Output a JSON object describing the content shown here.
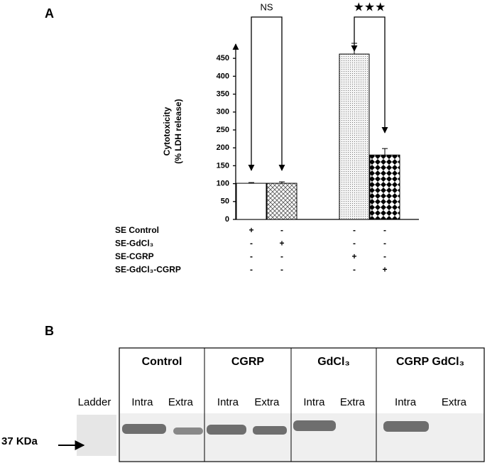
{
  "chart_data": {
    "type": "bar",
    "panel_label": "A",
    "ylabel": [
      "Cytotoxicity",
      "(% LDH release)"
    ],
    "values": [
      101,
      101,
      462,
      180
    ],
    "errors": [
      2,
      4,
      30,
      18
    ],
    "ylim": [
      0,
      490
    ],
    "yticks": [
      0,
      50,
      100,
      150,
      200,
      250,
      300,
      350,
      400,
      450
    ],
    "annotations": [
      "NS",
      "★★★"
    ],
    "conditions": [
      {
        "name": "SE Control",
        "signs": [
          "+",
          "-",
          "-",
          "-"
        ]
      },
      {
        "name": "SE-GdCl₃",
        "signs": [
          "-",
          "+",
          "-",
          "-"
        ]
      },
      {
        "name": "SE-CGRP",
        "signs": [
          "-",
          "-",
          "+",
          "-"
        ]
      },
      {
        "name": "SE-GdCl₃-CGRP",
        "signs": [
          "-",
          "-",
          "-",
          "+"
        ]
      }
    ]
  },
  "blot": {
    "panel_label": "B",
    "ladder": "Ladder",
    "marker": "37 KDa",
    "groups": [
      {
        "name": "Control",
        "lanes": [
          "Intra",
          "Extra"
        ]
      },
      {
        "name": "CGRP",
        "lanes": [
          "Intra",
          "Extra"
        ]
      },
      {
        "name": "GdCl₃",
        "lanes": [
          "Intra",
          "Extra"
        ]
      },
      {
        "name": "CGRP GdCl₃",
        "lanes": [
          "Intra",
          "Extra"
        ]
      }
    ]
  }
}
